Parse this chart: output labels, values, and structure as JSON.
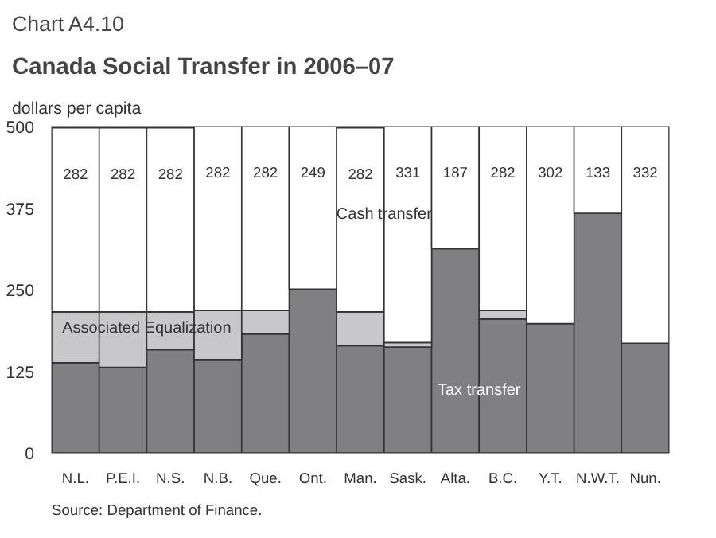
{
  "chart_data": {
    "type": "bar",
    "title": "Chart A4.10",
    "subtitle": "Canada Social Transfer in 2006–07",
    "ylabel": "dollars per capita",
    "categories": [
      "N.L.",
      "P.E.I.",
      "N.S.",
      "N.B.",
      "Que.",
      "Ont.",
      "Man.",
      "Sask.",
      "Alta.",
      "B.C.",
      "Y.T.",
      "N.W.T.",
      "Nun."
    ],
    "stacked": true,
    "grid": false,
    "ylim": [
      0,
      500
    ],
    "yticks": [
      0,
      125,
      250,
      375,
      500
    ],
    "series": [
      {
        "name": "Tax transfer",
        "color": "#808083",
        "values": [
          138,
          131,
          158,
          143,
          182,
          251,
          164,
          162,
          313,
          205,
          198,
          367,
          168
        ]
      },
      {
        "name": "Associated Equalization",
        "color": "#c8c8ca",
        "values": [
          78,
          85,
          58,
          75,
          36,
          0,
          52,
          7,
          0,
          13,
          0,
          0,
          0
        ]
      },
      {
        "name": "Cash transfer",
        "color": "#ffffff",
        "values": [
          282,
          282,
          282,
          282,
          282,
          249,
          282,
          331,
          187,
          282,
          302,
          133,
          332
        ],
        "value_labels": [
          "282",
          "282",
          "282",
          "282",
          "282",
          "249",
          "282",
          "331",
          "187",
          "282",
          "302",
          "133",
          "332"
        ]
      }
    ],
    "annotations": [
      "Source: Department of Finance."
    ]
  }
}
